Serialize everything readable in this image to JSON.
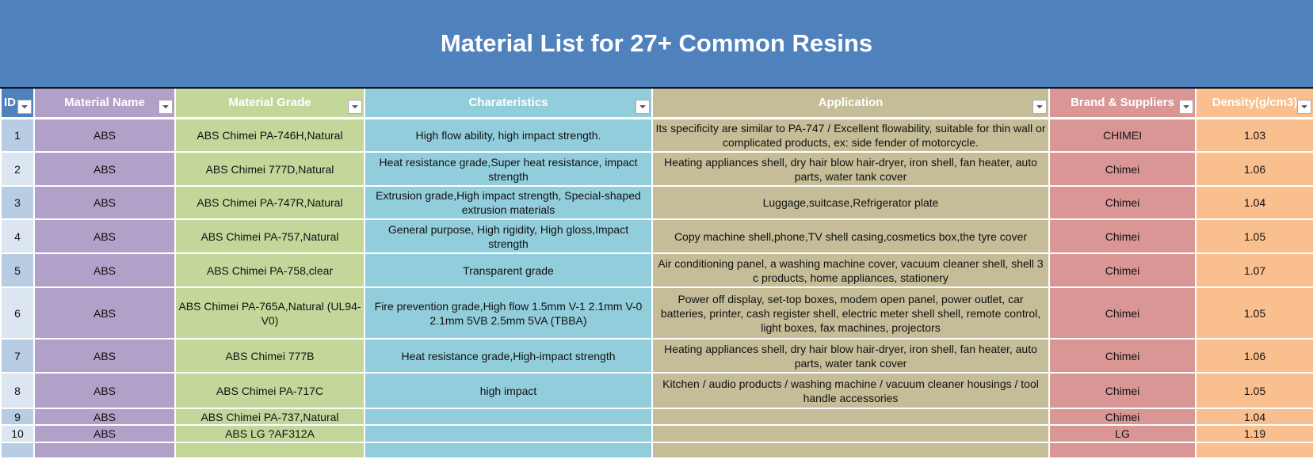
{
  "title": "Material List for 27+ Common Resins",
  "colors": {
    "header": "#4f81bd",
    "id": "#b8cce4",
    "name": "#b1a0c7",
    "grade": "#c4d79b",
    "characteristics": "#92cddc",
    "application": "#c4bd97",
    "brand": "#da9694",
    "density": "#fabf8f"
  },
  "columns": [
    "ID",
    "Material Name",
    "Material Grade",
    "Charateristics",
    "Application",
    "Brand & Suppliers",
    "Density(g/cm3)"
  ],
  "rows": [
    [
      "1",
      "ABS",
      "ABS Chimei PA-746H,Natural",
      "High flow ability, high impact strength.",
      "Its specificity are similar to PA-747 / Excellent flowability, suitable for thin wall or complicated products, ex: side fender of motorcycle.",
      "CHIMEI",
      "1.03"
    ],
    [
      "2",
      "ABS",
      "ABS Chimei 777D,Natural",
      "Heat resistance grade,Super heat resistance, impact strength",
      "Heating appliances shell, dry hair blow hair-dryer, iron shell, fan heater, auto parts, water tank cover",
      "Chimei",
      "1.06"
    ],
    [
      "3",
      "ABS",
      "ABS Chimei PA-747R,Natural",
      "Extrusion grade,High impact strength, Special-shaped extrusion materials",
      "Luggage,suitcase,Refrigerator plate",
      "Chimei",
      "1.04"
    ],
    [
      "4",
      "ABS",
      "ABS Chimei PA-757,Natural",
      "General purpose, High rigidity, High gloss,Impact strength",
      "Copy machine shell,phone,TV shell casing,cosmetics box,the tyre cover",
      "Chimei",
      "1.05"
    ],
    [
      "5",
      "ABS",
      "ABS Chimei PA-758,clear",
      "Transparent grade",
      "Air conditioning panel, a washing machine cover, vacuum cleaner shell, shell 3 c products, home appliances, stationery",
      "Chimei",
      "1.07"
    ],
    [
      "6",
      "ABS",
      "ABS Chimei PA-765A,Natural (UL94-V0)",
      "Fire prevention grade,High flow 1.5mm V-1 2.1mm V-0 2.1mm 5VB 2.5mm 5VA (TBBA)",
      "Power off display, set-top boxes, modem open panel, power outlet, car batteries, printer, cash register shell, electric meter shell shell, remote control, light boxes, fax machines, projectors",
      "Chimei",
      "1.05"
    ],
    [
      "7",
      "ABS",
      "ABS Chimei 777B",
      "Heat resistance grade,High-impact strength",
      "Heating appliances shell, dry hair blow hair-dryer, iron shell, fan heater, auto parts, water tank cover",
      "Chimei",
      "1.06"
    ],
    [
      "8",
      "ABS",
      "ABS Chimei PA-717C",
      "high impact",
      "Kitchen / audio products / washing machine / vacuum cleaner housings / tool handle accessories",
      "Chimei",
      "1.05"
    ],
    [
      "9",
      "ABS",
      "ABS Chimei PA-737,Natural",
      "",
      "",
      "Chimei",
      "1.04"
    ],
    [
      "10",
      "ABS",
      "ABS LG ?AF312A",
      "",
      "",
      "LG",
      "1.19"
    ],
    [
      "",
      "",
      "",
      "",
      "",
      "",
      ""
    ]
  ]
}
